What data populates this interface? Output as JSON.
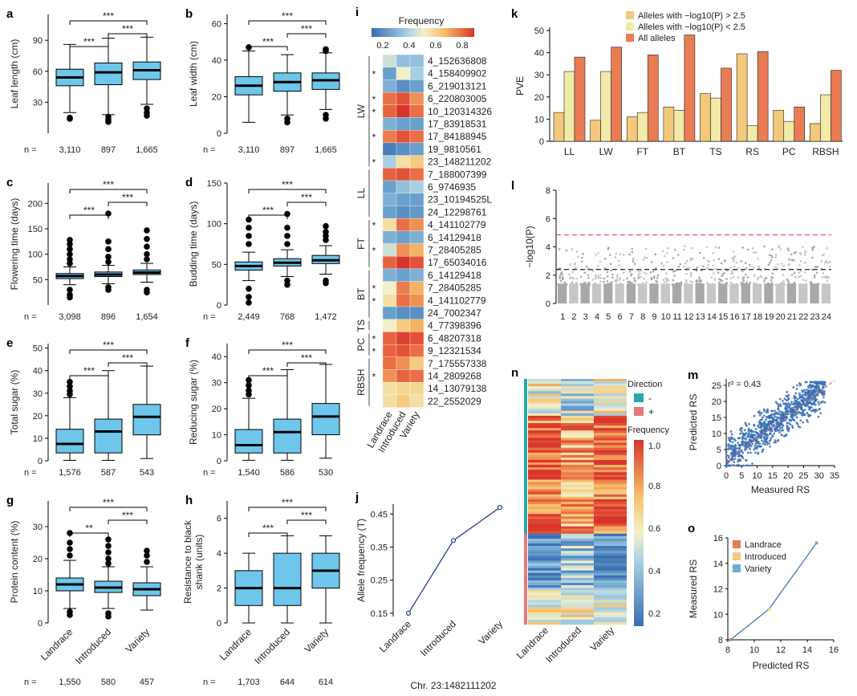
{
  "panels": {
    "a": {
      "label": "a",
      "ylabel": "Leaf length (cm)",
      "yticks": [
        30,
        60,
        90
      ],
      "ymin": 0,
      "ymax": 115,
      "boxes": [
        {
          "q1": 46,
          "med": 54,
          "q3": 62,
          "wlo": 20,
          "whi": 86,
          "outliers": [
            15,
            14
          ]
        },
        {
          "q1": 47,
          "med": 59,
          "q3": 68,
          "wlo": 18,
          "whi": 92,
          "outliers": [
            16,
            13,
            11
          ]
        },
        {
          "q1": 52,
          "med": 61,
          "q3": 69,
          "wlo": 28,
          "whi": 93,
          "outliers": [
            24,
            20,
            17
          ]
        }
      ],
      "n": [
        "3,110",
        "897",
        "1,665"
      ],
      "sig": [
        {
          "from": 0,
          "to": 2,
          "text": "***",
          "level": 0
        },
        {
          "from": 0,
          "to": 1,
          "text": "***",
          "level": 2
        },
        {
          "from": 1,
          "to": 2,
          "text": "***",
          "level": 1
        }
      ]
    },
    "b": {
      "label": "b",
      "ylabel": "Leaf width (cm)",
      "yticks": [
        0,
        20,
        40,
        60
      ],
      "ymin": 0,
      "ymax": 65,
      "boxes": [
        {
          "q1": 21,
          "med": 26,
          "q3": 31,
          "wlo": 6,
          "whi": 45,
          "outliers": [
            47
          ]
        },
        {
          "q1": 23,
          "med": 28,
          "q3": 33,
          "wlo": 10,
          "whi": 43,
          "outliers": [
            8,
            6
          ]
        },
        {
          "q1": 24,
          "med": 29,
          "q3": 33,
          "wlo": 13,
          "whi": 44,
          "outliers": [
            46,
            45,
            10,
            8
          ]
        }
      ],
      "n": [
        "3,110",
        "897",
        "1,665"
      ],
      "sig": [
        {
          "from": 0,
          "to": 2,
          "text": "***",
          "level": 0
        },
        {
          "from": 0,
          "to": 1,
          "text": "***",
          "level": 2
        },
        {
          "from": 1,
          "to": 2,
          "text": "***",
          "level": 1
        }
      ]
    },
    "c": {
      "label": "c",
      "ylabel": "Flowering time (days)",
      "yticks": [
        50,
        100,
        150,
        200
      ],
      "ymin": 0,
      "ymax": 240,
      "boxes": [
        {
          "q1": 52,
          "med": 57,
          "q3": 62,
          "wlo": 40,
          "whi": 75,
          "outliers": [
            128,
            120,
            110,
            100,
            90,
            82,
            30,
            20,
            15
          ]
        },
        {
          "q1": 56,
          "med": 60,
          "q3": 65,
          "wlo": 42,
          "whi": 78,
          "outliers": [
            180,
            125,
            110,
            95,
            85,
            35,
            30
          ]
        },
        {
          "q1": 60,
          "med": 64,
          "q3": 69,
          "wlo": 45,
          "whi": 82,
          "outliers": [
            147,
            130,
            115,
            100,
            90,
            30,
            25
          ]
        }
      ],
      "n": [
        "3,098",
        "896",
        "1,654"
      ],
      "sig": [
        {
          "from": 0,
          "to": 2,
          "text": "***",
          "level": 0
        },
        {
          "from": 0,
          "to": 1,
          "text": "***",
          "level": 2
        },
        {
          "from": 1,
          "to": 2,
          "text": "***",
          "level": 1
        }
      ]
    },
    "d": {
      "label": "d",
      "ylabel": "Budding time (days)",
      "yticks": [
        0,
        50,
        100,
        150
      ],
      "ymin": 0,
      "ymax": 150,
      "boxes": [
        {
          "q1": 43,
          "med": 48,
          "q3": 53,
          "wlo": 30,
          "whi": 65,
          "outliers": [
            105,
            95,
            85,
            75,
            20,
            10,
            3
          ]
        },
        {
          "q1": 48,
          "med": 52,
          "q3": 57,
          "wlo": 35,
          "whi": 68,
          "outliers": [
            112,
            95,
            85,
            75,
            30,
            25
          ]
        },
        {
          "q1": 51,
          "med": 55,
          "q3": 61,
          "wlo": 38,
          "whi": 73,
          "outliers": [
            97,
            90,
            85,
            80,
            30,
            27
          ]
        }
      ],
      "n": [
        "2,449",
        "768",
        "1,472"
      ],
      "sig": [
        {
          "from": 0,
          "to": 2,
          "text": "***",
          "level": 0
        },
        {
          "from": 0,
          "to": 1,
          "text": "***",
          "level": 2
        },
        {
          "from": 1,
          "to": 2,
          "text": "***",
          "level": 1
        }
      ]
    },
    "e": {
      "label": "e",
      "ylabel": "Total sugar (%)",
      "yticks": [
        0,
        10,
        20,
        30,
        40,
        50
      ],
      "ymin": 0,
      "ymax": 52,
      "boxes": [
        {
          "q1": 3.5,
          "med": 7.5,
          "q3": 14,
          "wlo": 0.2,
          "whi": 28,
          "outliers": [
            35,
            33,
            31,
            29.5
          ]
        },
        {
          "q1": 3.5,
          "med": 13,
          "q3": 18.5,
          "wlo": 0.2,
          "whi": 40,
          "outliers": []
        },
        {
          "q1": 11.5,
          "med": 19.5,
          "q3": 25,
          "wlo": 1,
          "whi": 42,
          "outliers": []
        }
      ],
      "n": [
        "1,576",
        "587",
        "543"
      ],
      "sig": [
        {
          "from": 0,
          "to": 2,
          "text": "***",
          "level": 0
        },
        {
          "from": 0,
          "to": 1,
          "text": "***",
          "level": 2
        },
        {
          "from": 1,
          "to": 2,
          "text": "***",
          "level": 1
        }
      ]
    },
    "f": {
      "label": "f",
      "ylabel": "Reducing sugar (%)",
      "yticks": [
        0,
        10,
        20,
        30,
        40
      ],
      "ymin": 0,
      "ymax": 45,
      "boxes": [
        {
          "q1": 3,
          "med": 6,
          "q3": 12,
          "wlo": 0.2,
          "whi": 24,
          "outliers": [
            31,
            29,
            27,
            25.5
          ]
        },
        {
          "q1": 3,
          "med": 11,
          "q3": 16,
          "wlo": 0.2,
          "whi": 35,
          "outliers": []
        },
        {
          "q1": 10,
          "med": 17,
          "q3": 22,
          "wlo": 1,
          "whi": 37,
          "outliers": []
        }
      ],
      "n": [
        "1,540",
        "586",
        "530"
      ],
      "sig": [
        {
          "from": 0,
          "to": 2,
          "text": "***",
          "level": 0
        },
        {
          "from": 0,
          "to": 1,
          "text": "***",
          "level": 2
        },
        {
          "from": 1,
          "to": 2,
          "text": "***",
          "level": 1
        }
      ]
    },
    "g": {
      "label": "g",
      "ylabel": "Protein content (%)",
      "yticks": [
        0,
        10,
        20,
        30
      ],
      "ymin": 0,
      "ymax": 38,
      "boxes": [
        {
          "q1": 10,
          "med": 12,
          "q3": 14,
          "wlo": 4.5,
          "whi": 19.5,
          "outliers": [
            28,
            25,
            23,
            21,
            3.5,
            2.5
          ]
        },
        {
          "q1": 9.5,
          "med": 11,
          "q3": 13,
          "wlo": 4.5,
          "whi": 17.5,
          "outliers": [
            26,
            24,
            22,
            20,
            18.5,
            3,
            2
          ]
        },
        {
          "q1": 8.5,
          "med": 10.5,
          "q3": 12.5,
          "wlo": 4,
          "whi": 17.5,
          "outliers": [
            22.5,
            21,
            19
          ]
        }
      ],
      "n": [
        "1,550",
        "580",
        "457"
      ],
      "sig": [
        {
          "from": 0,
          "to": 2,
          "text": "***",
          "level": 0
        },
        {
          "from": 0,
          "to": 1,
          "text": "**",
          "level": 2
        },
        {
          "from": 1,
          "to": 2,
          "text": "***",
          "level": 1
        }
      ],
      "xticks": [
        "Landrace",
        "Introduced",
        "Variety"
      ]
    },
    "h": {
      "label": "h",
      "ylabel": "Resistance to black\nshank (units)",
      "yticks": [
        0,
        2,
        4,
        6
      ],
      "ymin": 0,
      "ymax": 7,
      "boxes": [
        {
          "q1": 1,
          "med": 2,
          "q3": 3,
          "wlo": 0,
          "whi": 4,
          "outliers": []
        },
        {
          "q1": 1,
          "med": 2,
          "q3": 4,
          "wlo": 0,
          "whi": 5,
          "outliers": []
        },
        {
          "q1": 2,
          "med": 3,
          "q3": 4,
          "wlo": 0,
          "whi": 5,
          "outliers": []
        }
      ],
      "n": [
        "1,703",
        "644",
        "614"
      ],
      "sig": [
        {
          "from": 0,
          "to": 2,
          "text": "***",
          "level": 0
        },
        {
          "from": 0,
          "to": 1,
          "text": "***",
          "level": 2
        },
        {
          "from": 1,
          "to": 2,
          "text": "***",
          "level": 1
        }
      ],
      "xticks": [
        "Landrace",
        "Introduced",
        "Variety"
      ]
    }
  },
  "n_prefix": "n =",
  "heatmap_i": {
    "label": "i",
    "title": "Frequency",
    "cbar_ticks": [
      "0.2",
      "0.4",
      "0.6",
      "0.8"
    ],
    "columns": [
      "Landrace",
      "Introduced",
      "Variety"
    ],
    "rows": [
      {
        "snp": "4_152636808",
        "vals": [
          0.5,
          0.4,
          0.4
        ],
        "star": "",
        "grp": "LW"
      },
      {
        "snp": "4_158409902",
        "vals": [
          0.3,
          0.55,
          0.45
        ],
        "star": "red",
        "grp": "LW"
      },
      {
        "snp": "6_219013121",
        "vals": [
          0.35,
          0.25,
          0.3
        ],
        "star": "",
        "grp": "LW"
      },
      {
        "snp": "6_220803005",
        "vals": [
          0.8,
          0.85,
          0.75
        ],
        "star": "black",
        "grp": "LW"
      },
      {
        "snp": "10_120314326",
        "vals": [
          0.82,
          0.9,
          0.8
        ],
        "star": "black",
        "grp": "LW"
      },
      {
        "snp": "17_83918531",
        "vals": [
          0.35,
          0.3,
          0.3
        ],
        "star": "",
        "grp": "LW"
      },
      {
        "snp": "17_84188945",
        "vals": [
          0.78,
          0.85,
          0.8
        ],
        "star": "black",
        "grp": "LW"
      },
      {
        "snp": "19_9810561",
        "vals": [
          0.2,
          0.25,
          0.3
        ],
        "star": "",
        "grp": "LW"
      },
      {
        "snp": "23_148211202",
        "vals": [
          0.45,
          0.6,
          0.65
        ],
        "star": "red",
        "grp": "LW"
      },
      {
        "snp": "7_188007399",
        "vals": [
          0.82,
          0.85,
          0.8
        ],
        "star": "",
        "grp": "LL"
      },
      {
        "snp": "6_9746935",
        "vals": [
          0.3,
          0.4,
          0.45
        ],
        "star": "",
        "grp": "LL"
      },
      {
        "snp": "23_10194525L",
        "vals": [
          0.35,
          0.3,
          0.3
        ],
        "star": "",
        "grp": "LL"
      },
      {
        "snp": "24_12298761",
        "vals": [
          0.3,
          0.25,
          0.28
        ],
        "star": "",
        "grp": "LL"
      },
      {
        "snp": "4_141102779",
        "vals": [
          0.6,
          0.8,
          0.75
        ],
        "star": "black",
        "grp": "FT"
      },
      {
        "snp": "6_14129418",
        "vals": [
          0.35,
          0.3,
          0.35
        ],
        "star": "",
        "grp": "FT"
      },
      {
        "snp": "7_28405285",
        "vals": [
          0.5,
          0.75,
          0.7
        ],
        "star": "black",
        "grp": "FT"
      },
      {
        "snp": "17_65034016",
        "vals": [
          0.82,
          0.9,
          0.85
        ],
        "star": "",
        "grp": "FT"
      },
      {
        "snp": "6_14129418",
        "vals": [
          0.35,
          0.3,
          0.35
        ],
        "star": "",
        "grp": "BT"
      },
      {
        "snp": "7_28405285",
        "vals": [
          0.55,
          0.78,
          0.7
        ],
        "star": "black",
        "grp": "BT"
      },
      {
        "snp": "4_141102779",
        "vals": [
          0.6,
          0.8,
          0.75
        ],
        "star": "black",
        "grp": "BT"
      },
      {
        "snp": "24_7002347",
        "vals": [
          0.3,
          0.25,
          0.25
        ],
        "star": "",
        "grp": "BT"
      },
      {
        "snp": "4_77398396",
        "vals": [
          0.55,
          0.65,
          0.7
        ],
        "star": "",
        "grp": "TS"
      },
      {
        "snp": "6_48207318",
        "vals": [
          0.82,
          0.88,
          0.85
        ],
        "star": "black",
        "grp": "PC"
      },
      {
        "snp": "9_12321534",
        "vals": [
          0.82,
          0.85,
          0.8
        ],
        "star": "black",
        "grp": "PC"
      },
      {
        "snp": "7_175557338",
        "vals": [
          0.8,
          0.75,
          0.65
        ],
        "star": "",
        "grp": "RBSH"
      },
      {
        "snp": "14_2809268",
        "vals": [
          0.75,
          0.82,
          0.8
        ],
        "star": "red",
        "grp": "RBSH"
      },
      {
        "snp": "14_13079138",
        "vals": [
          0.6,
          0.62,
          0.62
        ],
        "star": "",
        "grp": "RBSH"
      },
      {
        "snp": "22_2552029",
        "vals": [
          0.6,
          0.65,
          0.6
        ],
        "star": "",
        "grp": "RBSH"
      }
    ],
    "groups": [
      "LW",
      "LL",
      "FT",
      "BT",
      "TS",
      "PC",
      "RBSH"
    ]
  },
  "chart_data": [
    {
      "type": "bar",
      "panel": "k",
      "ylabel": "PVE",
      "categories": [
        "LL",
        "LW",
        "FT",
        "BT",
        "TS",
        "RS",
        "PC",
        "RBSH"
      ],
      "ylim": [
        0,
        50
      ],
      "yticks": [
        0,
        10,
        20,
        30,
        40,
        50
      ],
      "series": [
        {
          "name": "Alleles with −log10(P) > 2.5",
          "color": "#f2c97a",
          "values": [
            13,
            9.5,
            11,
            15.5,
            21.5,
            39.5,
            14,
            8
          ]
        },
        {
          "name": "Alleles with −log10(P) < 2.5",
          "color": "#f2eaa8",
          "values": [
            31.5,
            31.5,
            13,
            14,
            19.5,
            7,
            9,
            21
          ]
        },
        {
          "name": "All alleles",
          "color": "#e97c55",
          "values": [
            38,
            42.5,
            39,
            48,
            33,
            40.5,
            15.5,
            32
          ]
        }
      ],
      "legend": "top-left"
    },
    {
      "type": "scatter",
      "panel": "l",
      "subtype": "manhattan",
      "ylabel": "−log10(P)",
      "ylim": [
        0,
        8
      ],
      "yticks": [
        0,
        2,
        4,
        6,
        8
      ],
      "xticks": [
        "1",
        "2",
        "3",
        "4",
        "5",
        "6",
        "7",
        "8",
        "9",
        "10",
        "11",
        "12",
        "13",
        "14",
        "15",
        "16",
        "17",
        "18",
        "19",
        "20",
        "21",
        "22",
        "23",
        "24"
      ],
      "thresholds": [
        {
          "value": 4.85,
          "color": "#e05050"
        },
        {
          "value": 2.4,
          "color": "#333333"
        }
      ]
    },
    {
      "type": "line",
      "panel": "j",
      "ylabel": "Allele frequency (T)",
      "xlabel": "Chr. 23:1482111202",
      "categories": [
        "Landrace",
        "Introduced",
        "Variety"
      ],
      "values": [
        0.15,
        0.37,
        0.47
      ],
      "ylim": [
        0.14,
        0.48
      ],
      "yticks": [
        0.15,
        0.25,
        0.35,
        0.45
      ]
    },
    {
      "type": "scatter",
      "panel": "m",
      "xlabel": "Measured RS",
      "ylabel": "Predicted RS",
      "annotation": "r² = 0.43",
      "xlim": [
        0,
        35
      ],
      "ylim": [
        0,
        27
      ],
      "xticks": [
        0,
        5,
        10,
        15,
        20,
        25,
        30,
        35
      ],
      "yticks": [
        0,
        5,
        10,
        15,
        20,
        25
      ]
    },
    {
      "type": "line",
      "panel": "o",
      "xlabel": "Predicted RS",
      "ylabel": "Measured RS",
      "xlim": [
        8,
        16
      ],
      "ylim": [
        8,
        16
      ],
      "xticks": [
        8,
        10,
        12,
        14,
        16
      ],
      "yticks": [
        8,
        10,
        12,
        14,
        16
      ],
      "points": [
        {
          "name": "Landrace",
          "x": 8.2,
          "y": 8.0,
          "color": "#e97c55"
        },
        {
          "name": "Introduced",
          "x": 11.1,
          "y": 10.4,
          "color": "#f2c97a"
        },
        {
          "name": "Variety",
          "x": 14.7,
          "y": 15.6,
          "color": "#6aaed6"
        }
      ]
    },
    {
      "type": "heatmap",
      "panel": "n",
      "columns": [
        "Landrace",
        "Introduced",
        "Variety"
      ],
      "legend_title": "Direction",
      "legend_items": [
        {
          "label": "-",
          "color": "#2aa8a8"
        },
        {
          "label": "+",
          "color": "#e57a7a"
        }
      ],
      "cbar_title": "Frequency",
      "cbar_ticks": [
        "0.2",
        "0.4",
        "0.6",
        "0.8",
        "1.0"
      ]
    }
  ]
}
